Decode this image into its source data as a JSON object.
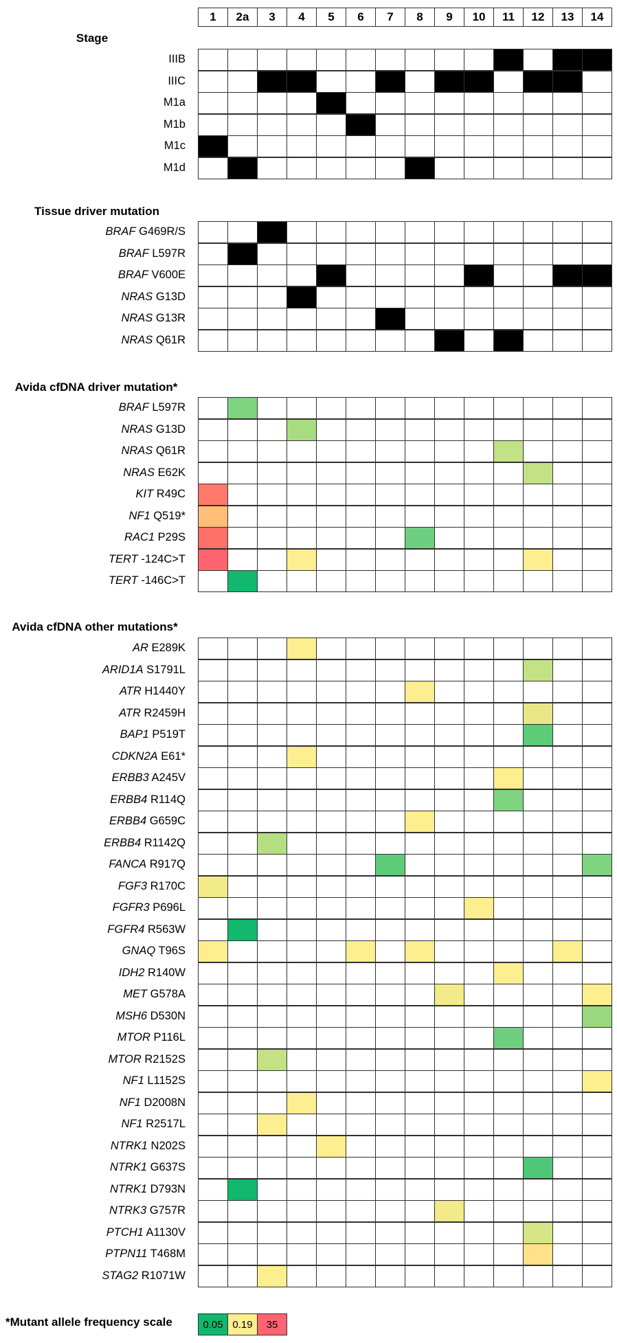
{
  "chart_data": {
    "type": "heatmap",
    "columns": [
      "1",
      "2a",
      "3",
      "4",
      "5",
      "6",
      "7",
      "8",
      "9",
      "10",
      "11",
      "12",
      "13",
      "14"
    ],
    "sections": [
      {
        "title": "Stage",
        "rows": [
          {
            "gene": "",
            "variant": "IIIB",
            "cells": {
              "11": "black",
              "13": "black",
              "14": "black"
            }
          },
          {
            "gene": "",
            "variant": "IIIC",
            "cells": {
              "3": "black",
              "4": "black",
              "7": "black",
              "9": "black",
              "10": "black",
              "12": "black",
              "13": "black"
            }
          },
          {
            "gene": "",
            "variant": "M1a",
            "cells": {
              "5": "black"
            }
          },
          {
            "gene": "",
            "variant": "M1b",
            "cells": {
              "6": "black"
            }
          },
          {
            "gene": "",
            "variant": "M1c",
            "cells": {
              "1": "black"
            }
          },
          {
            "gene": "",
            "variant": "M1d",
            "cells": {
              "2a": "black",
              "8": "black"
            }
          }
        ]
      },
      {
        "title": "Tissue driver mutation",
        "rows": [
          {
            "gene": "BRAF",
            "variant": "G469R/S",
            "cells": {
              "3": "black"
            }
          },
          {
            "gene": "BRAF",
            "variant": "L597R",
            "cells": {
              "2a": "black"
            }
          },
          {
            "gene": "BRAF",
            "variant": "V600E",
            "cells": {
              "5": "black",
              "10": "black",
              "13": "black",
              "14": "black"
            }
          },
          {
            "gene": "NRAS",
            "variant": "G13D",
            "cells": {
              "4": "black"
            }
          },
          {
            "gene": "NRAS",
            "variant": "G13R",
            "cells": {
              "7": "black"
            }
          },
          {
            "gene": "NRAS",
            "variant": "Q61R",
            "cells": {
              "9": "black",
              "11": "black"
            }
          }
        ]
      },
      {
        "title": "Avida cfDNA driver mutation*",
        "rows": [
          {
            "gene": "BRAF",
            "variant": "L597R",
            "cells": {
              "2a": "#7fd47f"
            }
          },
          {
            "gene": "NRAS",
            "variant": "G13D",
            "cells": {
              "4": "#a8dd7f"
            }
          },
          {
            "gene": "NRAS",
            "variant": "Q61R",
            "cells": {
              "11": "#c3e285"
            }
          },
          {
            "gene": "NRAS",
            "variant": "E62K",
            "cells": {
              "12": "#c3e285"
            }
          },
          {
            "gene": "KIT",
            "variant": "R49C",
            "cells": {
              "1": "#ff7a6b"
            }
          },
          {
            "gene": "NF1",
            "variant": "Q519*",
            "cells": {
              "1": "#ffbe78"
            }
          },
          {
            "gene": "RAC1",
            "variant": "P29S",
            "cells": {
              "1": "#ff7068",
              "8": "#6fcf80"
            }
          },
          {
            "gene": "TERT",
            "variant": "-124C>T",
            "cells": {
              "1": "#ff6470",
              "4": "#fdee8f",
              "12": "#fdee8f"
            }
          },
          {
            "gene": "TERT",
            "variant": "-146C>T",
            "cells": {
              "2a": "#11b86e"
            }
          }
        ]
      },
      {
        "title": "Avida cfDNA other mutations*",
        "rows": [
          {
            "gene": "AR",
            "variant": "E289K",
            "cells": {
              "4": "#fdee8f"
            }
          },
          {
            "gene": "ARID1A",
            "variant": "S1791L",
            "cells": {
              "12": "#c3e285"
            }
          },
          {
            "gene": "ATR",
            "variant": "H1440Y",
            "cells": {
              "8": "#fdee8f"
            }
          },
          {
            "gene": "ATR",
            "variant": "R2459H",
            "cells": {
              "12": "#e9e687"
            }
          },
          {
            "gene": "BAP1",
            "variant": "P519T",
            "cells": {
              "12": "#5dcb77"
            }
          },
          {
            "gene": "CDKN2A",
            "variant": "E61*",
            "cells": {
              "4": "#fdee8f"
            }
          },
          {
            "gene": "ERBB3",
            "variant": "A245V",
            "cells": {
              "11": "#fdee8f"
            }
          },
          {
            "gene": "ERBB4",
            "variant": "R114Q",
            "cells": {
              "11": "#7fd47f"
            }
          },
          {
            "gene": "ERBB4",
            "variant": "G659C",
            "cells": {
              "8": "#fdee8f"
            }
          },
          {
            "gene": "ERBB4",
            "variant": "R1142Q",
            "cells": {
              "3": "#b5de82"
            }
          },
          {
            "gene": "FANCA",
            "variant": "R917Q",
            "cells": {
              "7": "#5dcb77",
              "14": "#7fd47f"
            }
          },
          {
            "gene": "FGF3",
            "variant": "R170C",
            "cells": {
              "1": "#f3ea89"
            }
          },
          {
            "gene": "FGFR3",
            "variant": "P696L",
            "cells": {
              "10": "#fdee8f"
            }
          },
          {
            "gene": "FGFR4",
            "variant": "R563W",
            "cells": {
              "2a": "#11b86e"
            }
          },
          {
            "gene": "GNAQ",
            "variant": "T96S",
            "cells": {
              "1": "#fdee8f",
              "6": "#fdee8f",
              "8": "#fdee8f",
              "13": "#fdee8f"
            }
          },
          {
            "gene": "IDH2",
            "variant": "R140W",
            "cells": {
              "11": "#fdee8f"
            }
          },
          {
            "gene": "MET",
            "variant": "G578A",
            "cells": {
              "9": "#f3ea89",
              "14": "#fdee8f"
            }
          },
          {
            "gene": "MSH6",
            "variant": "D530N",
            "cells": {
              "14": "#9ad87f"
            }
          },
          {
            "gene": "MTOR",
            "variant": "P116L",
            "cells": {
              "11": "#6fcf80"
            }
          },
          {
            "gene": "MTOR",
            "variant": "R2152S",
            "cells": {
              "3": "#c3e285"
            }
          },
          {
            "gene": "NF1",
            "variant": "L1152S",
            "cells": {
              "14": "#fdee8f"
            }
          },
          {
            "gene": "NF1",
            "variant": "D2008N",
            "cells": {
              "4": "#fdee8f"
            }
          },
          {
            "gene": "NF1",
            "variant": "R2517L",
            "cells": {
              "3": "#fdee8f"
            }
          },
          {
            "gene": "NTRK1",
            "variant": "N202S",
            "cells": {
              "5": "#fdee8f"
            }
          },
          {
            "gene": "NTRK1",
            "variant": "G637S",
            "cells": {
              "12": "#4fc778"
            }
          },
          {
            "gene": "NTRK1",
            "variant": "D793N",
            "cells": {
              "2a": "#11b86e"
            }
          },
          {
            "gene": "NTRK3",
            "variant": "G757R",
            "cells": {
              "9": "#f3ea89"
            }
          },
          {
            "gene": "PTCH1",
            "variant": "A1130V",
            "cells": {
              "12": "#d6e587"
            }
          },
          {
            "gene": "PTPN11",
            "variant": "T468M",
            "cells": {
              "12": "#ffe28a"
            }
          },
          {
            "gene": "STAG2",
            "variant": "R1071W",
            "cells": {
              "3": "#fdee8f"
            }
          }
        ]
      }
    ],
    "scale": {
      "title": "*Mutant allele frequency scale",
      "stops": [
        {
          "label": "0.05",
          "color": "#11b86e"
        },
        {
          "label": "0.19",
          "color": "#fdee8f"
        },
        {
          "label": "35",
          "color": "#ff6470"
        }
      ]
    }
  }
}
